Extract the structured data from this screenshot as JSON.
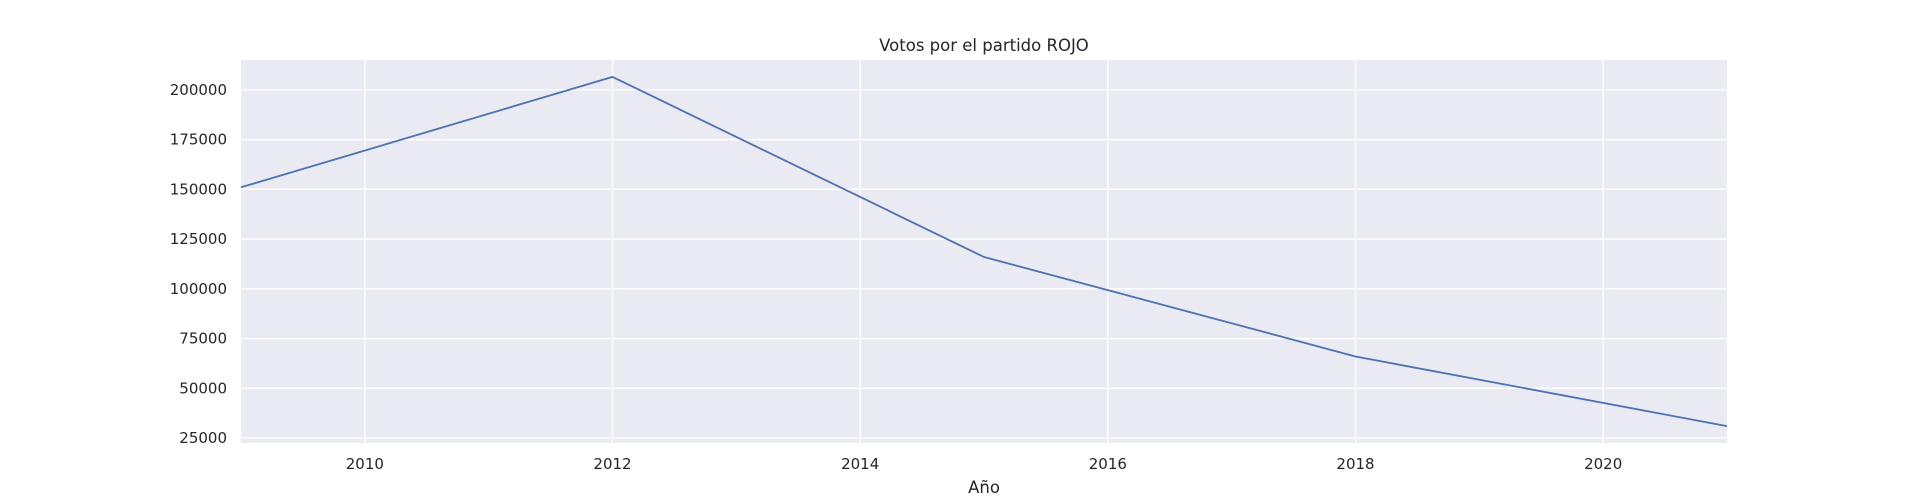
{
  "chart_data": {
    "type": "line",
    "title": "Votos por el partido ROJO",
    "xlabel": "Año",
    "ylabel": "",
    "x": [
      2009,
      2012,
      2015,
      2018,
      2021
    ],
    "series": [
      {
        "values": [
          151000,
          206500,
          116000,
          66000,
          31000
        ]
      }
    ],
    "xlim": [
      2009,
      2021
    ],
    "ylim": [
      22500,
      215000
    ],
    "xticks": [
      "2010",
      "2012",
      "2014",
      "2016",
      "2018",
      "2020"
    ],
    "yticks": [
      "25000",
      "50000",
      "75000",
      "100000",
      "125000",
      "150000",
      "175000",
      "200000"
    ],
    "grid": true,
    "legend": "none",
    "colors": {
      "line": "#4c72b0",
      "plot_background": "#eaeaf2",
      "grid": "#ffffff"
    }
  }
}
